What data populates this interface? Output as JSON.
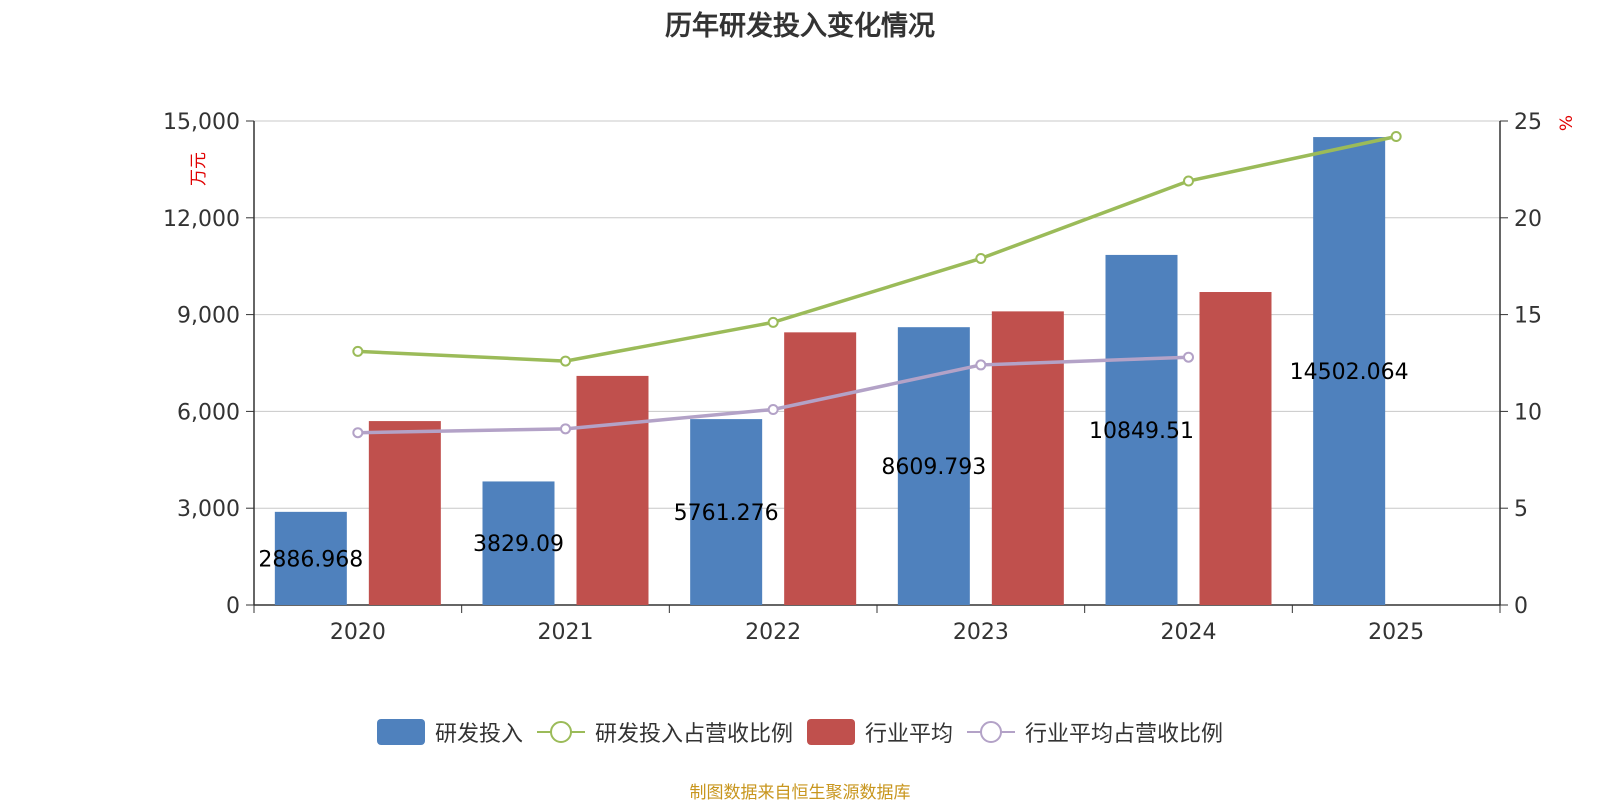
{
  "chart_data": {
    "type": "bar",
    "title": "历年研发投入变化情况",
    "categories": [
      "2020",
      "2021",
      "2022",
      "2023",
      "2024",
      "2025"
    ],
    "y_left": {
      "label": "万元",
      "min": 0,
      "max": 15000,
      "ticks": [
        0,
        3000,
        6000,
        9000,
        12000,
        15000
      ],
      "tick_labels": [
        "0",
        "3,000",
        "6,000",
        "9,000",
        "12,000",
        "15,000"
      ]
    },
    "y_right": {
      "label": "%",
      "min": 0,
      "max": 25,
      "ticks": [
        0,
        5,
        10,
        15,
        20,
        25
      ],
      "tick_labels": [
        "0",
        "5",
        "10",
        "15",
        "20",
        "25"
      ]
    },
    "grid": true,
    "legend_position": "bottom",
    "series": [
      {
        "name": "研发投入",
        "type": "bar",
        "axis": "left",
        "color": "#4f81bd",
        "values": [
          2886.968,
          3829.09,
          5761.276,
          8609.793,
          10849.51,
          14502.064
        ],
        "labels": [
          "2886.968",
          "3829.09",
          "5761.276",
          "8609.793",
          "10849.51",
          "14502.064"
        ]
      },
      {
        "name": "研发投入占营收比例",
        "type": "line",
        "axis": "right",
        "color": "#9bbb59",
        "values": [
          13.1,
          12.6,
          14.6,
          17.9,
          21.9,
          24.2
        ]
      },
      {
        "name": "行业平均",
        "type": "bar",
        "axis": "left",
        "color": "#c0504d",
        "values": [
          5700,
          7100,
          8450,
          9100,
          9700,
          null
        ]
      },
      {
        "name": "行业平均占营收比例",
        "type": "line",
        "axis": "right",
        "color": "#b3a2c7",
        "values": [
          8.9,
          9.1,
          10.1,
          12.4,
          12.8,
          null
        ]
      }
    ]
  },
  "footer": {
    "source": "制图数据来自恒生聚源数据库"
  }
}
